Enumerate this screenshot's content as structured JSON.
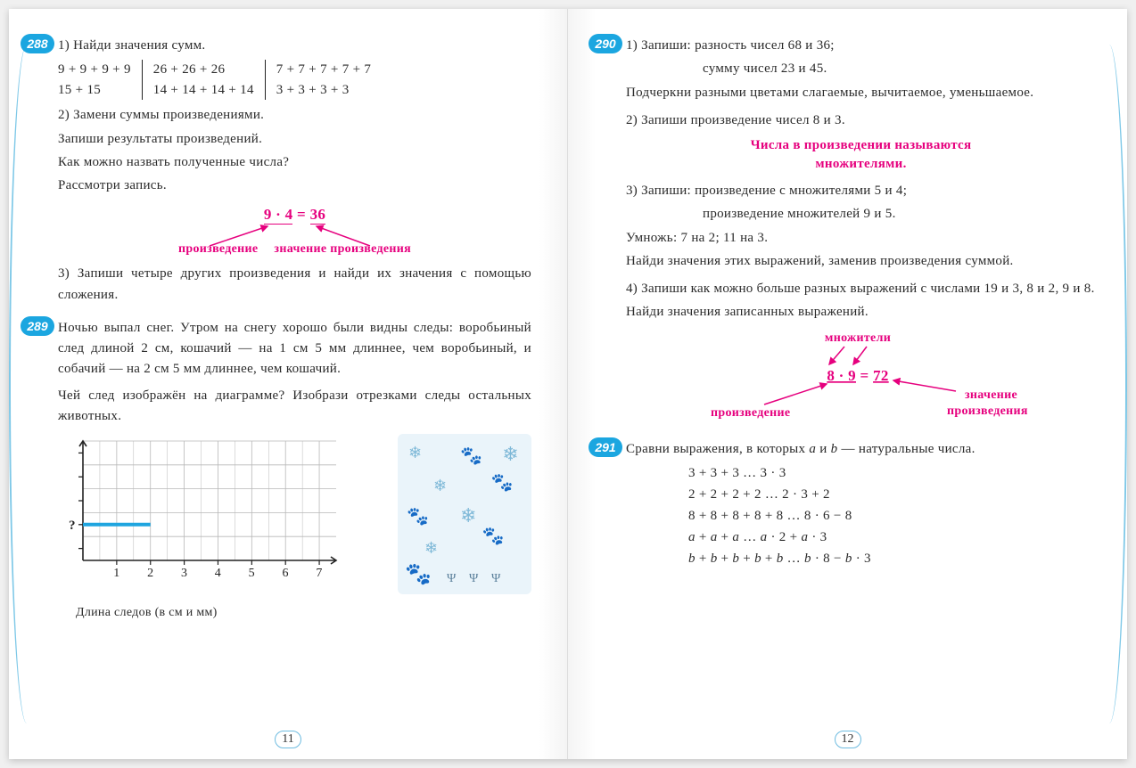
{
  "colors": {
    "badge_bg": "#1ba6e0",
    "badge_fg": "#ffffff",
    "pink": "#e6007e",
    "text": "#2a2a2a",
    "chart_bar": "#1fa5df",
    "chart_grid": "#b8b8b8",
    "deco_bg": "#eaf4fa"
  },
  "page_left": {
    "number": "11",
    "p288": {
      "badge": "288",
      "line1": "1) Найди значения сумм.",
      "cols": [
        [
          "9 + 9 + 9 + 9",
          "15 + 15"
        ],
        [
          "26 + 26 + 26",
          "14 + 14 + 14 + 14"
        ],
        [
          "7 + 7 + 7 + 7 + 7",
          "3 + 3 + 3 + 3"
        ]
      ],
      "line2": "2) Замени суммы произведениями.",
      "line3": "Запиши результаты произведений.",
      "line4": "Как можно назвать полученные числа?",
      "line5": "Рассмотри запись.",
      "formula_left": "9 · 4",
      "formula_eq": " = ",
      "formula_right": "36",
      "label_left": "произведение",
      "label_right": "значение произведения",
      "line6": "3) Запиши четыре других произведения и найди их значения с помощью сложения."
    },
    "p289": {
      "badge": "289",
      "para": "Ночью выпал снег. Утром на снегу хорошо были видны следы: воробьиный след длиной 2 см, кошачий — на 1 см 5 мм длиннее, чем воробьиный, и собачий — на 2 см 5 мм длиннее, чем кошачий.",
      "q": "Чей след изображён на диаграмме? Изобрази отрезками следы остальных животных.",
      "chart": {
        "x_ticks": [
          "1",
          "2",
          "3",
          "4",
          "5",
          "6",
          "7"
        ],
        "x_max": 7.5,
        "rows": 5,
        "bar_row": 1,
        "bar_value": 2,
        "q_mark": "?",
        "axis_title": "Длина следов (в см и мм)"
      }
    }
  },
  "page_right": {
    "number": "12",
    "p290": {
      "badge": "290",
      "t1a": "1) Запиши: разность чисел 68 и 36;",
      "t1b": "сумму чисел 23 и 45.",
      "t1c": "Подчеркни разными цветами слагаемые, вычитаемое, уменьшаемое.",
      "t2": "2) Запиши произведение чисел 8 и 3.",
      "rule1": "Числа в произведении называются",
      "rule2": "множителями.",
      "t3a": "3) Запиши: произведение с множителями 5 и 4;",
      "t3b": "произведение множителей 9 и 5.",
      "t3c": "Умножь: 7 на 2; 11 на 3.",
      "t3d": "Найди значения этих выражений, заменив произведения суммой.",
      "t4a": "4) Запиши как можно больше разных выражений с числами 19 и 3,   8 и 2,   9 и 8.",
      "t4b": "Найди значения записанных выражений.",
      "diag": {
        "top": "множители",
        "expr_l": "8 · 9",
        "expr_eq": " = ",
        "expr_r": "72",
        "bl": "произведение",
        "br1": "значение",
        "br2": "произведения"
      }
    },
    "p291": {
      "badge": "291",
      "intro": "Сравни выражения, в которых a и b — натуральные числа.",
      "rows": [
        "3 + 3 + 3  …  3 · 3",
        "2 + 2 + 2 + 2  …  2 · 3 + 2",
        "8 + 8 + 8 + 8 + 8  …  8 · 6 − 8",
        "a + a + a  …  a · 2 + a · 3",
        "b + b + b + b + b  …  b · 8 − b · 3"
      ]
    }
  }
}
